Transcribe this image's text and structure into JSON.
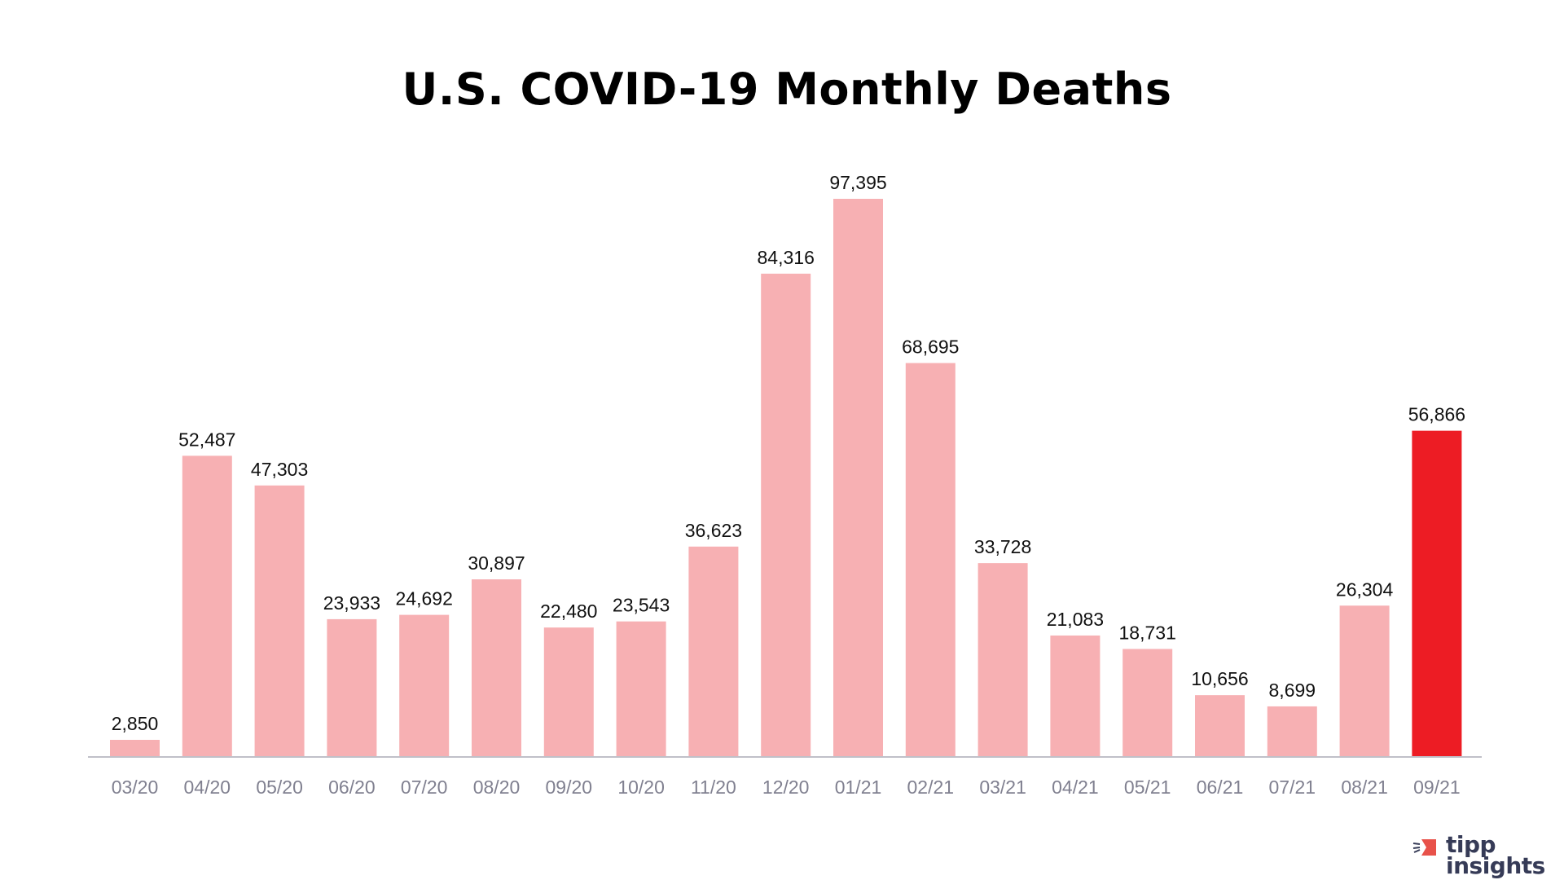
{
  "chart_data": {
    "type": "bar",
    "title": "U.S.  COVID-19 Monthly Deaths",
    "xlabel": "",
    "ylabel": "",
    "categories": [
      "03/20",
      "04/20",
      "05/20",
      "06/20",
      "07/20",
      "08/20",
      "09/20",
      "10/20",
      "11/20",
      "12/20",
      "01/21",
      "02/21",
      "03/21",
      "04/21",
      "05/21",
      "06/21",
      "07/21",
      "08/21",
      "09/21"
    ],
    "values": [
      2850,
      52487,
      47303,
      23933,
      24692,
      30897,
      22480,
      23543,
      36623,
      84316,
      97395,
      68695,
      33728,
      21083,
      18731,
      10656,
      8699,
      26304,
      56866
    ],
    "value_labels": [
      "2,850",
      "52,487",
      "47,303",
      "23,933",
      "24,692",
      "30,897",
      "22,480",
      "23,543",
      "36,623",
      "84,316",
      "97,395",
      "68,695",
      "33,728",
      "21,083",
      "18,731",
      "10,656",
      "8,699",
      "26,304",
      "56,866"
    ],
    "highlight_index": 18,
    "colors": {
      "bar": "#F7B0B3",
      "highlight": "#ED1C24",
      "axis": "#C0C0C8",
      "tick": "#808090"
    },
    "grid": false,
    "legend": "none"
  },
  "logo": {
    "line1": "tipp",
    "line2": "insights",
    "colors": {
      "mark": "#E8524A",
      "text": "#363B57"
    }
  }
}
